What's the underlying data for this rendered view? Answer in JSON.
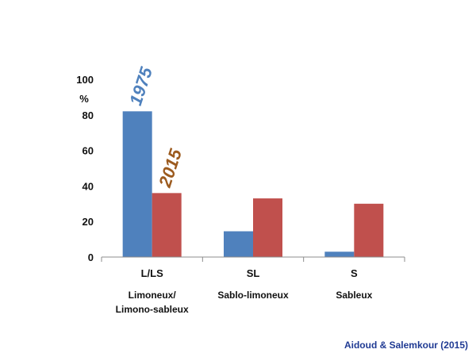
{
  "chart_data": {
    "type": "bar",
    "categories": [
      "L/LS",
      "SL",
      "S"
    ],
    "category_descriptions": [
      [
        "Limoneux/",
        "Limono-sableux"
      ],
      [
        "Sablo-limoneux"
      ],
      [
        "Sableux"
      ]
    ],
    "series": [
      {
        "name": "1975",
        "values": [
          82,
          14.5,
          3
        ],
        "color": "#4f81bd"
      },
      {
        "name": "2015",
        "values": [
          36,
          33,
          30
        ],
        "color": "#c0504d"
      }
    ],
    "series_label_colors": [
      "#4f81bd",
      "#9c5b1f"
    ],
    "ylabel": "%",
    "ylim": [
      0,
      100
    ],
    "yticks": [
      0,
      20,
      40,
      60,
      80,
      100
    ],
    "grid": false,
    "legend": "none"
  },
  "source": "Aidoud & Salemkour (2015)"
}
